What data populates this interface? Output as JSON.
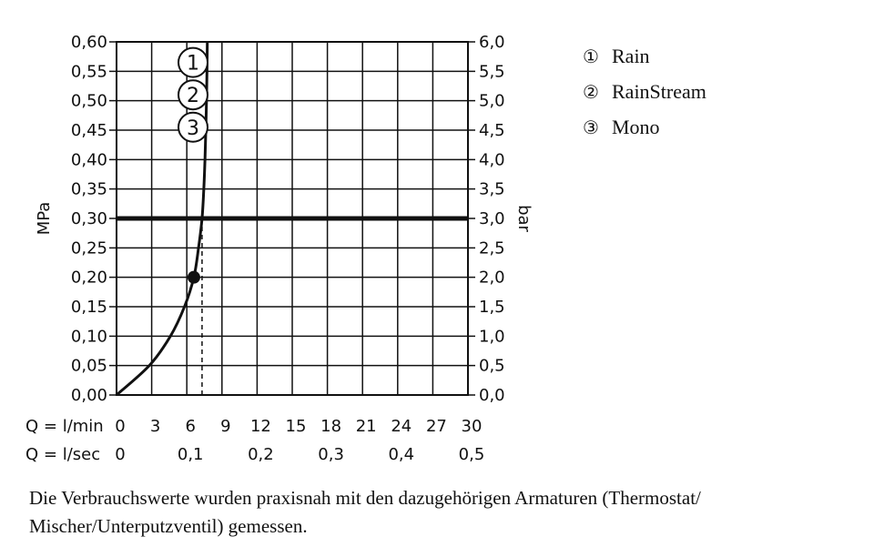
{
  "chart_data": {
    "type": "line",
    "y_left": {
      "label": "MPa",
      "ticks": [
        "0,00",
        "0,05",
        "0,10",
        "0,15",
        "0,20",
        "0,25",
        "0,30",
        "0,35",
        "0,40",
        "0,45",
        "0,50",
        "0,55",
        "0,60"
      ],
      "range": [
        0,
        0.6
      ]
    },
    "y_right": {
      "label": "bar",
      "ticks": [
        "0,0",
        "0,5",
        "1,0",
        "1,5",
        "2,0",
        "2,5",
        "3,0",
        "3,5",
        "4,0",
        "4,5",
        "5,0",
        "5,5",
        "6,0"
      ],
      "range": [
        0,
        6
      ]
    },
    "x_lmin": {
      "label": "Q = l/min",
      "ticks": [
        "0",
        "3",
        "6",
        "9",
        "12",
        "15",
        "18",
        "21",
        "24",
        "27",
        "30"
      ],
      "range": [
        0,
        30
      ]
    },
    "x_lsec": {
      "label": "Q = l/sec",
      "ticks": [
        "0",
        "0,1",
        "0,2",
        "0,3",
        "0,4",
        "0,5"
      ],
      "range": [
        0,
        0.5
      ]
    },
    "grid": true,
    "series": [
      {
        "name": "Rain / RainStream / Mono",
        "points": [
          [
            0,
            0
          ],
          [
            2.8,
            0.05
          ],
          [
            4.6,
            0.1
          ],
          [
            5.8,
            0.15
          ],
          [
            6.6,
            0.2
          ],
          [
            7.0,
            0.25
          ],
          [
            7.3,
            0.3
          ],
          [
            7.45,
            0.35
          ],
          [
            7.55,
            0.4
          ],
          [
            7.62,
            0.45
          ],
          [
            7.68,
            0.5
          ],
          [
            7.72,
            0.55
          ],
          [
            7.75,
            0.6
          ]
        ]
      }
    ],
    "marker": {
      "x": 6.6,
      "y": 0.2
    },
    "reference_pressure": 0.3,
    "reference_flow": 7.3,
    "curve_labels": [
      "1",
      "2",
      "3"
    ]
  },
  "legend": [
    {
      "num": "①",
      "label": "Rain"
    },
    {
      "num": "②",
      "label": "RainStream"
    },
    {
      "num": "③",
      "label": "Mono"
    }
  ],
  "note": "Die Verbrauchswerte wurden praxisnah mit den dazugehörigen Armaturen (Thermostat/ Mischer/Unterputzventil) gemessen."
}
